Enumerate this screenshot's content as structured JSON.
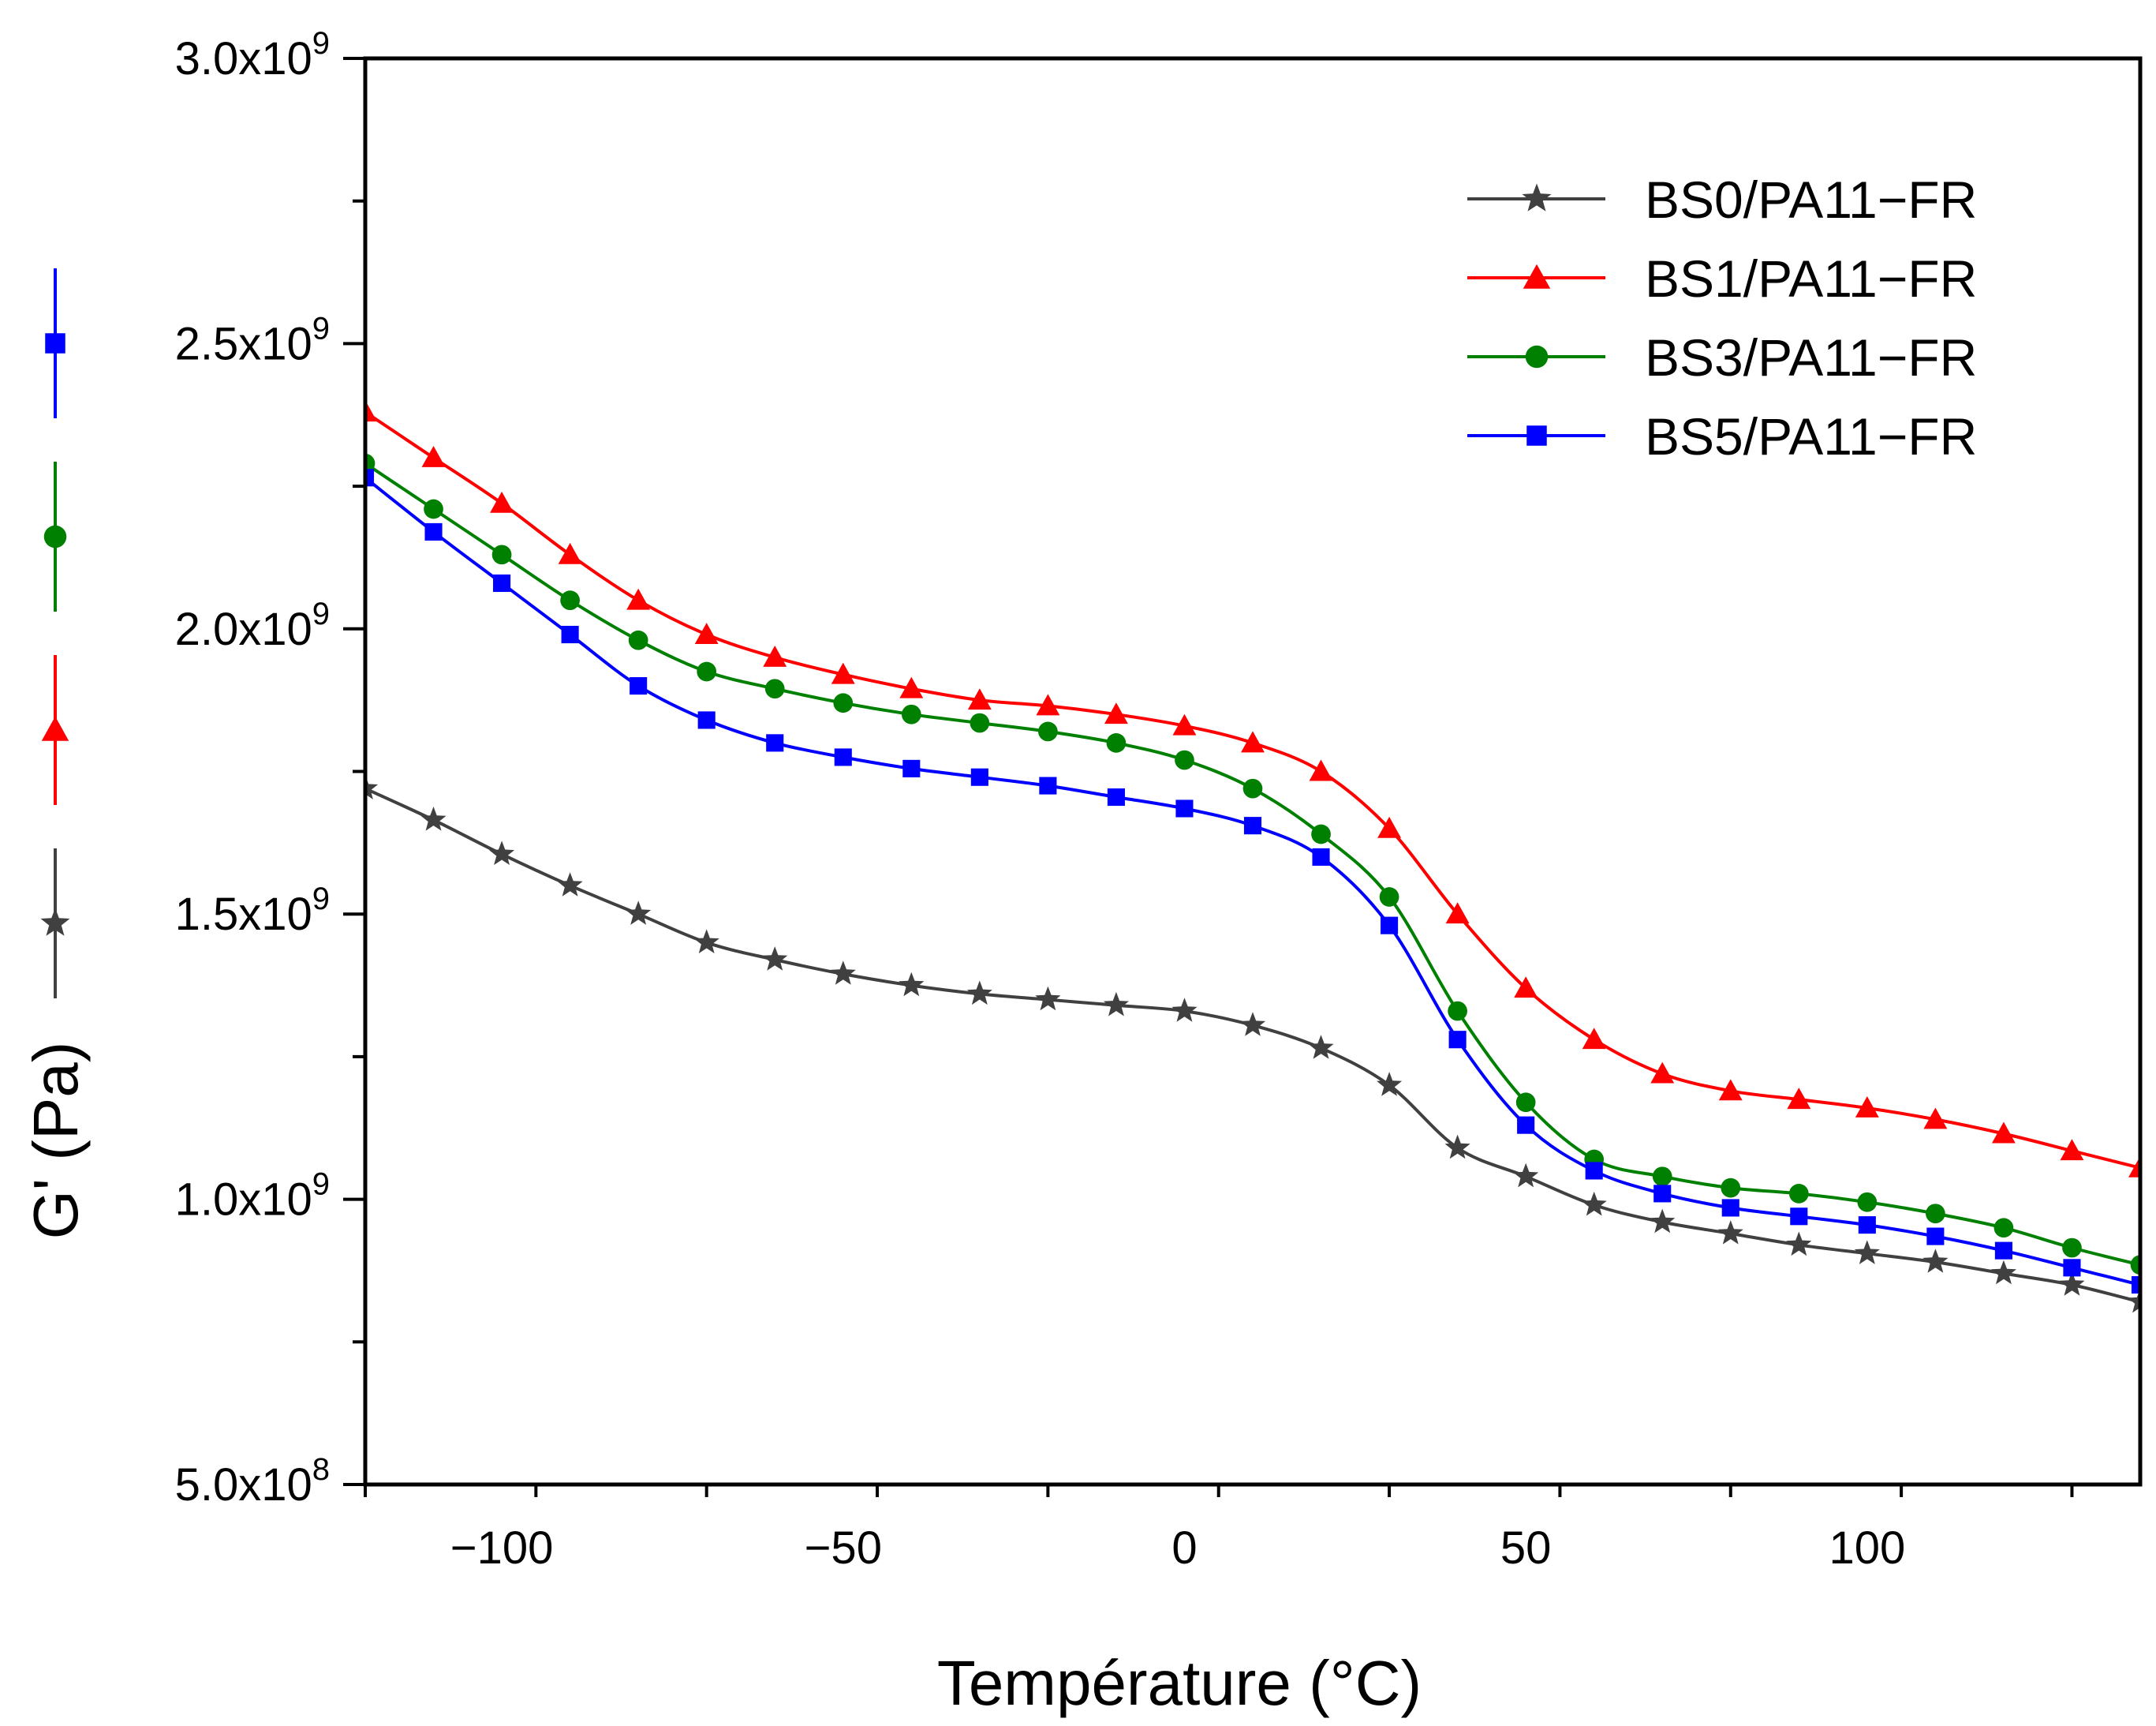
{
  "chart_data": {
    "type": "line",
    "xlabel": "Température (°C)",
    "ylabel": "G' (Pa)",
    "xlim": [
      -120,
      140
    ],
    "ylim": [
      500000000,
      3000000000
    ],
    "x_ticks": [
      -100,
      -50,
      0,
      50,
      100
    ],
    "x_tick_labels": [
      "−100",
      "−50",
      "0",
      "50",
      "100"
    ],
    "y_ticks": [
      {
        "value": 500000000,
        "mantissa": "5.0x10",
        "exp": "8"
      },
      {
        "value": 1000000000,
        "mantissa": "1.0x10",
        "exp": "9"
      },
      {
        "value": 1500000000,
        "mantissa": "1.5x10",
        "exp": "9"
      },
      {
        "value": 2000000000,
        "mantissa": "2.0x10",
        "exp": "9"
      },
      {
        "value": 2500000000,
        "mantissa": "2.5x10",
        "exp": "9"
      },
      {
        "value": 3000000000,
        "mantissa": "3.0x10",
        "exp": "9"
      }
    ],
    "legend_position": "top-right",
    "grid": false,
    "series": [
      {
        "name": "BS0/PA11−FR",
        "color": "#404040",
        "marker": "star",
        "x": [
          -120,
          -110,
          -100,
          -90,
          -80,
          -70,
          -60,
          -50,
          -40,
          -30,
          -20,
          -10,
          0,
          10,
          20,
          30,
          40,
          50,
          60,
          70,
          80,
          90,
          100,
          110,
          120,
          130,
          140
        ],
        "y": [
          1720000000,
          1665000000,
          1605000000,
          1550000000,
          1500000000,
          1450000000,
          1420000000,
          1395000000,
          1375000000,
          1360000000,
          1350000000,
          1340000000,
          1330000000,
          1305000000,
          1265000000,
          1200000000,
          1090000000,
          1040000000,
          990000000,
          960000000,
          940000000,
          920000000,
          905000000,
          890000000,
          870000000,
          850000000,
          820000000
        ]
      },
      {
        "name": "BS1/PA11−FR",
        "color": "#ff0000",
        "marker": "triangle",
        "x": [
          -120,
          -110,
          -100,
          -90,
          -80,
          -70,
          -60,
          -50,
          -40,
          -30,
          -20,
          -10,
          0,
          10,
          20,
          30,
          40,
          50,
          60,
          70,
          80,
          90,
          100,
          110,
          120,
          130,
          140
        ],
        "y": [
          2380000000,
          2300000000,
          2220000000,
          2130000000,
          2050000000,
          1990000000,
          1950000000,
          1920000000,
          1895000000,
          1875000000,
          1865000000,
          1850000000,
          1830000000,
          1800000000,
          1750000000,
          1650000000,
          1500000000,
          1370000000,
          1280000000,
          1220000000,
          1190000000,
          1175000000,
          1160000000,
          1140000000,
          1115000000,
          1085000000,
          1055000000
        ]
      },
      {
        "name": "BS3/PA11−FR",
        "color": "#008000",
        "marker": "circle",
        "x": [
          -120,
          -110,
          -100,
          -90,
          -80,
          -70,
          -60,
          -50,
          -40,
          -30,
          -20,
          -10,
          0,
          10,
          20,
          30,
          40,
          50,
          60,
          70,
          80,
          90,
          100,
          110,
          120,
          130,
          140
        ],
        "y": [
          2290000000,
          2210000000,
          2130000000,
          2050000000,
          1980000000,
          1925000000,
          1895000000,
          1870000000,
          1850000000,
          1835000000,
          1820000000,
          1800000000,
          1770000000,
          1720000000,
          1640000000,
          1530000000,
          1330000000,
          1170000000,
          1070000000,
          1040000000,
          1020000000,
          1010000000,
          995000000,
          975000000,
          950000000,
          915000000,
          885000000
        ]
      },
      {
        "name": "BS5/PA11−FR",
        "color": "#0000ff",
        "marker": "square",
        "x": [
          -120,
          -110,
          -100,
          -90,
          -80,
          -70,
          -60,
          -50,
          -40,
          -30,
          -20,
          -10,
          0,
          10,
          20,
          30,
          40,
          50,
          60,
          70,
          80,
          90,
          100,
          110,
          120,
          130,
          140
        ],
        "y": [
          2265000000,
          2170000000,
          2080000000,
          1990000000,
          1900000000,
          1840000000,
          1800000000,
          1775000000,
          1755000000,
          1740000000,
          1725000000,
          1705000000,
          1685000000,
          1655000000,
          1600000000,
          1480000000,
          1280000000,
          1130000000,
          1050000000,
          1010000000,
          985000000,
          970000000,
          955000000,
          935000000,
          910000000,
          880000000,
          850000000
        ]
      }
    ]
  }
}
